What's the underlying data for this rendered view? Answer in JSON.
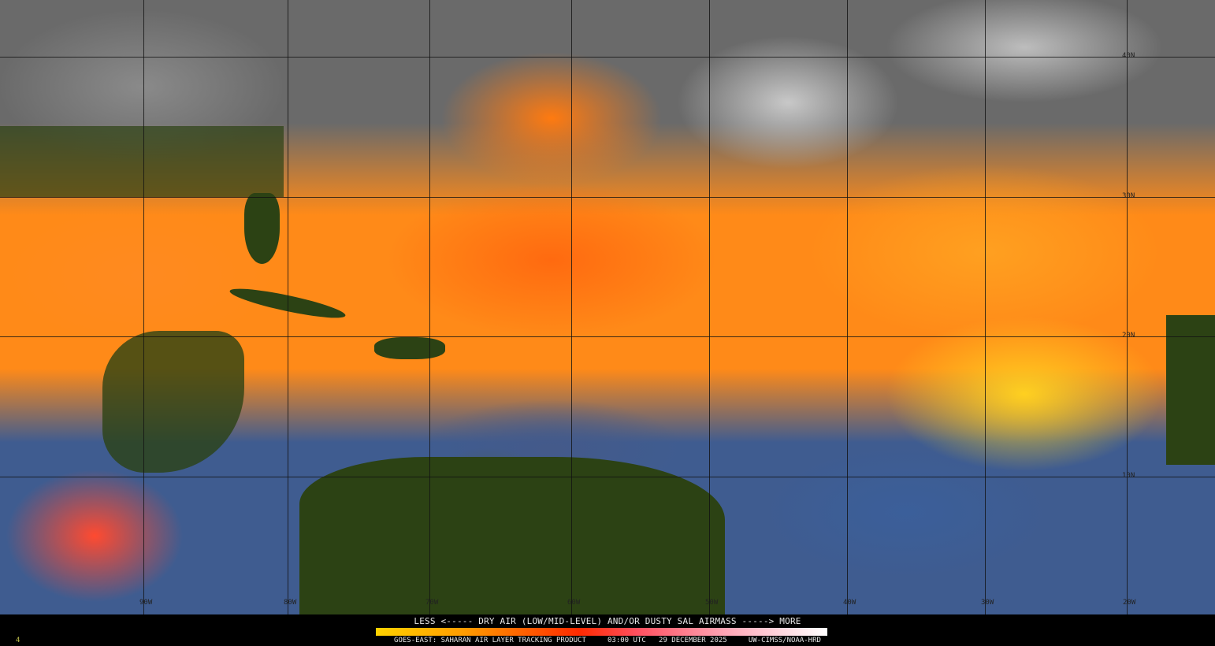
{
  "legend": {
    "title": "LESS <----- DRY AIR (LOW/MID-LEVEL) AND/OR DUSTY SAL AIRMASS -----> MORE",
    "colors": [
      "#ffd200",
      "#ff9a00",
      "#ff2a00",
      "#ff5060",
      "#ffa8b8",
      "#ffffff"
    ]
  },
  "footer": {
    "product": "GOES-EAST: SAHARAN AIR LAYER TRACKING PRODUCT",
    "time": "03:00 UTC",
    "date": "29 DECEMBER 2025",
    "credit": "UW-CIMSS/NOAA-HRD",
    "frame": "4"
  },
  "map": {
    "longitude_labels": [
      "90W",
      "80W",
      "70W",
      "60W",
      "50W",
      "40W",
      "30W",
      "20W"
    ],
    "latitude_labels": [
      "40N",
      "30N",
      "20N",
      "10N"
    ]
  }
}
